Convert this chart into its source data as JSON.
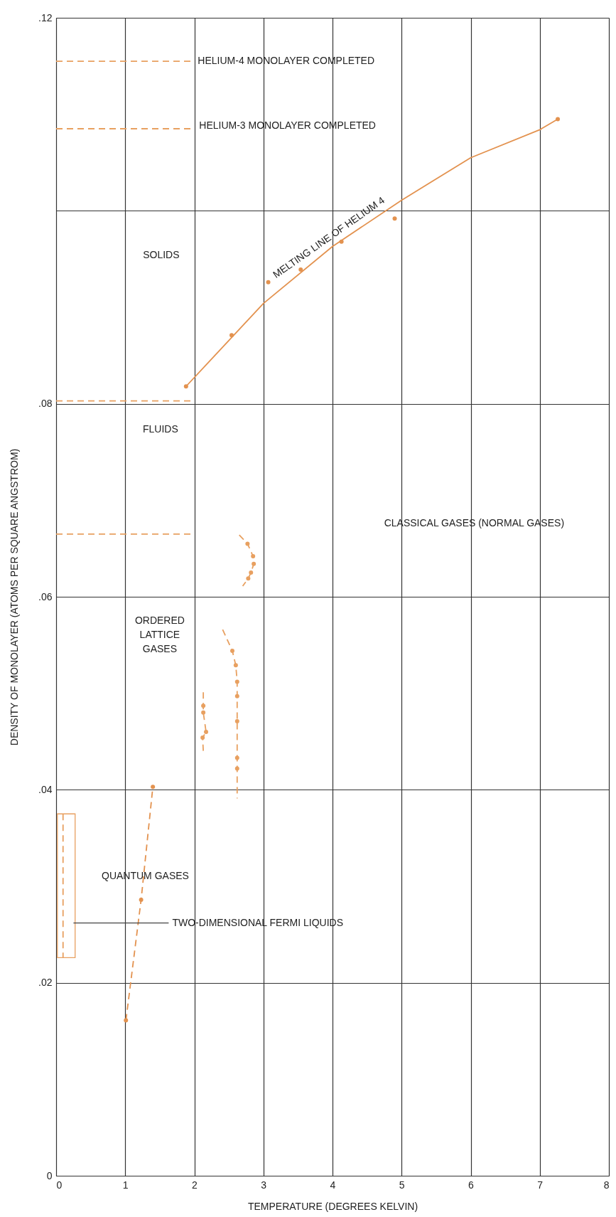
{
  "chart_data": {
    "type": "line",
    "xlabel": "TEMPERATURE (DEGREES KELVIN)",
    "ylabel": "DENSITY OF MONOLAYER  (ATOMS PER SQUARE ANGSTROM)",
    "xlim": [
      0,
      8
    ],
    "xticks": [
      0,
      1,
      2,
      3,
      4,
      5,
      6,
      7,
      8
    ],
    "ylim": [
      0,
      0.12
    ],
    "yticks": [
      0,
      {
        "value": 0.02,
        "label": ".02"
      },
      {
        "value": 0.04,
        "label": ".04"
      },
      {
        "value": 0.06,
        "label": ".06"
      },
      {
        "value": 0.08,
        "label": ".08"
      },
      {
        "value": 0.1,
        "label": null
      },
      {
        "value": 0.12,
        "label": ".12"
      }
    ],
    "grid": true,
    "series": [
      {
        "line_style": "dashed",
        "color": "#e8a060",
        "x": [
          0,
          2
        ],
        "values": [
          0.1155,
          0.1155
        ]
      },
      {
        "line_style": "dashed",
        "color": "#e8a060",
        "x": [
          0,
          2
        ],
        "values": [
          0.1085,
          0.1085
        ]
      },
      {
        "line_style": "dashed",
        "color": "#e8a060",
        "x": [
          0,
          2
        ],
        "values": [
          0.0803,
          0.0803
        ]
      },
      {
        "line_style": "dashed",
        "color": "#e8a060",
        "x": [
          0,
          2
        ],
        "values": [
          0.0665,
          0.0665
        ]
      },
      {
        "line_style": "solid",
        "color": "#e3924f",
        "x": [
          1.88,
          3,
          4,
          5,
          6,
          7,
          7.26
        ],
        "values": [
          0.0818,
          0.0904,
          0.0963,
          0.1011,
          0.1055,
          0.1084,
          0.1095
        ]
      },
      {
        "type": "scatter",
        "color": "#e3924f",
        "x": [
          1.88,
          2.54,
          3.07,
          3.54,
          4.13,
          4.9,
          7.26
        ],
        "values": [
          0.0818,
          0.0871,
          0.0926,
          0.0939,
          0.0968,
          0.0992,
          0.1095
        ]
      },
      {
        "line_style": "dashed",
        "marker": "circle",
        "color": "#e3924f",
        "x": [
          1.01,
          1.23,
          1.4
        ],
        "values": [
          0.0161,
          0.0286,
          0.0403
        ]
      },
      {
        "line_style": "dashed",
        "color": "#e8a060",
        "x": [
          2.65,
          2.77,
          2.85,
          2.86,
          2.82,
          2.78,
          2.7
        ],
        "values": [
          0.0664,
          0.0655,
          0.0642,
          0.0634,
          0.0625,
          0.0619,
          0.0611
        ]
      },
      {
        "line_style": "dashed",
        "color": "#e8a060",
        "x": [
          2.41,
          2.55,
          2.6,
          2.62,
          2.62,
          2.62,
          2.62,
          2.62,
          2.62
        ],
        "values": [
          0.0566,
          0.0544,
          0.0529,
          0.0512,
          0.0497,
          0.0471,
          0.0433,
          0.0422,
          0.0391
        ]
      },
      {
        "line_style": "dashed",
        "color": "#e8a060",
        "x": [
          2.13,
          2.13,
          2.13,
          2.17,
          2.12,
          2.13
        ],
        "values": [
          0.0501,
          0.0487,
          0.048,
          0.046,
          0.0454,
          0.044
        ]
      },
      {
        "type": "scatter",
        "color": "#e8a060",
        "x": [
          2.77,
          2.85,
          2.86,
          2.82,
          2.78,
          2.55,
          2.6,
          2.62,
          2.62,
          2.62,
          2.62,
          2.62,
          2.13,
          2.13,
          2.17,
          2.12
        ],
        "values": [
          0.0655,
          0.0642,
          0.0634,
          0.0625,
          0.0619,
          0.0544,
          0.0529,
          0.0512,
          0.0497,
          0.0471,
          0.0433,
          0.0422,
          0.0487,
          0.048,
          0.046,
          0.0454
        ]
      },
      {
        "line_style": "dashed",
        "color": "#e8a060",
        "x": [
          0.1,
          0.1
        ],
        "values": [
          0.0375,
          0.0226
        ]
      }
    ],
    "annotations": [
      "HELIUM-4 MONOLAYER COMPLETED",
      "HELIUM-3 MONOLAYER COMPLETED",
      "MELTING LINE OF HELIUM 4",
      "SOLIDS",
      "FLUIDS",
      "CLASSICAL GASES (NORMAL GASES)",
      "ORDERED\nLATTICE\nGASES",
      "QUANTUM GASES",
      "TWO-DIMENSIONAL FERMI LIQUIDS"
    ]
  }
}
